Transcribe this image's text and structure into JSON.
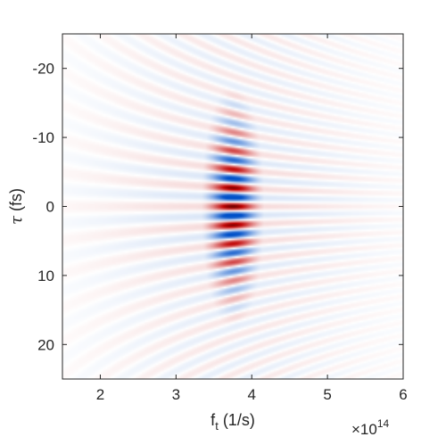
{
  "chart_data": {
    "type": "heatmap",
    "title": "",
    "xlabel_main": "f",
    "xlabel_sub": "t",
    "xlabel_units": " (1/s)",
    "ylabel_symbol": "τ",
    "ylabel_units": " (fs)",
    "x_exponent_base": "×10",
    "x_exponent_power": "14",
    "xlim": [
      1.5,
      6
    ],
    "ylim": [
      -25,
      25
    ],
    "y_reversed": true,
    "xticks": [
      2,
      3,
      4,
      5,
      6
    ],
    "xtick_labels": [
      "2",
      "3",
      "4",
      "5",
      "6"
    ],
    "yticks": [
      -20,
      -10,
      0,
      10,
      20
    ],
    "ytick_labels": [
      "-20",
      "-10",
      "0",
      "10",
      "20"
    ],
    "colormap": {
      "negative": "#0050c8",
      "zero": "#ffffff",
      "positive": "#c00000",
      "darkest_positive": "#6a0000"
    },
    "field": {
      "description_values": "interference fringes along tau, centered at f_t ≈ 3.75e14 1/s, strongest near tau = 0",
      "center_frequency": 3.75,
      "fringe_period_fs": 2.7,
      "frequency_width": 0.28,
      "tau_envelope_width": 11,
      "background_fringe_amplitude": 0.12
    }
  }
}
